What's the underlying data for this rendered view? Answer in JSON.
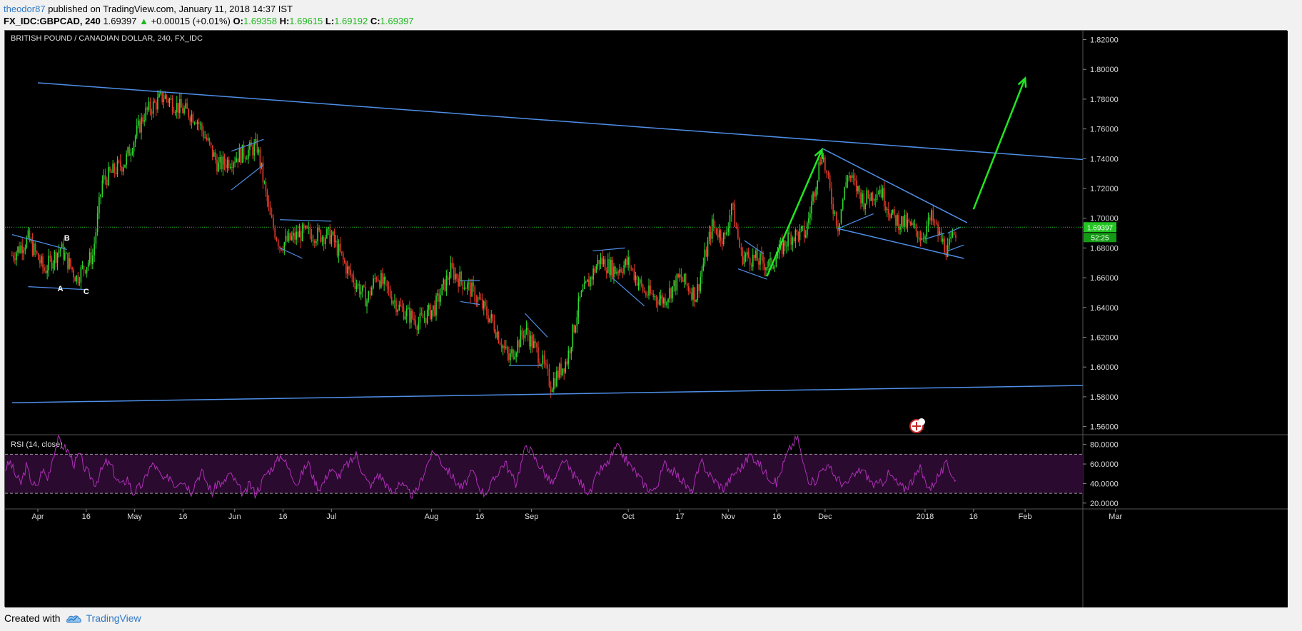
{
  "header": {
    "publisher": "theodor87",
    "published_text": "published on TradingView.com, January 11, 2018 14:37 IST",
    "symbol": "FX_IDC:GBPCAD, 240",
    "last": "1.69397",
    "change_arrow": "▲",
    "change": "+0.00015 (+0.01%)",
    "ohlc": [
      {
        "k": "O:",
        "v": "1.69358"
      },
      {
        "k": "H:",
        "v": "1.69615"
      },
      {
        "k": "L:",
        "v": "1.69192"
      },
      {
        "k": "C:",
        "v": "1.69397"
      }
    ]
  },
  "footer": {
    "created_with": "Created with",
    "brand": "TradingView",
    "logo_icon": "tradingview-cloud-icon"
  },
  "colors": {
    "background": "#000000",
    "bull_candle": "#2fd82f",
    "bear_candle": "#e33a2a",
    "trendline": "#4f8fe8",
    "arrow": "#22e622",
    "rsi_line": "#b02fb8",
    "rsi_band": "#2a0a2f",
    "price_line": "#23c523"
  },
  "chart_data": [
    {
      "type": "candlestick",
      "title": "BRITISH POUND / CANADIAN DOLLAR, 240, FX_IDC",
      "ylim": [
        1.555,
        1.826
      ],
      "y_ticks": [
        "1.82000",
        "1.80000",
        "1.78000",
        "1.76000",
        "1.74000",
        "1.72000",
        "1.70000",
        "1.68000",
        "1.66000",
        "1.64000",
        "1.62000",
        "1.60000",
        "1.58000",
        "1.56000"
      ],
      "x_ticks": [
        "Apr",
        "16",
        "May",
        "16",
        "Jun",
        "16",
        "Jul",
        "Aug",
        "16",
        "Sep",
        "Oct",
        "17",
        "Nov",
        "16",
        "Dec",
        "2018",
        "16",
        "Feb",
        "Mar"
      ],
      "x_tick_dates": [
        "2017-04-01",
        "2017-04-16",
        "2017-05-01",
        "2017-05-16",
        "2017-06-01",
        "2017-06-16",
        "2017-07-01",
        "2017-08-01",
        "2017-08-16",
        "2017-09-01",
        "2017-10-01",
        "2017-10-17",
        "2017-11-01",
        "2017-11-16",
        "2017-12-01",
        "2018-01-01",
        "2018-01-16",
        "2018-02-01",
        "2018-03-01"
      ],
      "last_price_label": "1.69397",
      "countdown_label": "52:25",
      "current_price": 1.69397,
      "price_path": [
        {
          "date": "2017-03-24",
          "close": 1.675
        },
        {
          "date": "2017-03-29",
          "close": 1.686
        },
        {
          "date": "2017-04-03",
          "close": 1.665
        },
        {
          "date": "2017-04-08",
          "close": 1.68
        },
        {
          "date": "2017-04-13",
          "close": 1.66
        },
        {
          "date": "2017-04-18",
          "close": 1.675
        },
        {
          "date": "2017-04-21",
          "close": 1.725
        },
        {
          "date": "2017-04-28",
          "close": 1.738
        },
        {
          "date": "2017-05-04",
          "close": 1.77
        },
        {
          "date": "2017-05-10",
          "close": 1.782
        },
        {
          "date": "2017-05-15",
          "close": 1.774
        },
        {
          "date": "2017-05-20",
          "close": 1.768
        },
        {
          "date": "2017-05-27",
          "close": 1.735
        },
        {
          "date": "2017-06-02",
          "close": 1.742
        },
        {
          "date": "2017-06-08",
          "close": 1.748
        },
        {
          "date": "2017-06-12",
          "close": 1.7
        },
        {
          "date": "2017-06-15",
          "close": 1.682
        },
        {
          "date": "2017-06-22",
          "close": 1.69
        },
        {
          "date": "2017-07-01",
          "close": 1.688
        },
        {
          "date": "2017-07-06",
          "close": 1.665
        },
        {
          "date": "2017-07-12",
          "close": 1.645
        },
        {
          "date": "2017-07-15",
          "close": 1.662
        },
        {
          "date": "2017-07-22",
          "close": 1.64
        },
        {
          "date": "2017-07-28",
          "close": 1.63
        },
        {
          "date": "2017-08-02",
          "close": 1.64
        },
        {
          "date": "2017-08-07",
          "close": 1.665
        },
        {
          "date": "2017-08-14",
          "close": 1.65
        },
        {
          "date": "2017-08-20",
          "close": 1.63
        },
        {
          "date": "2017-08-25",
          "close": 1.605
        },
        {
          "date": "2017-08-30",
          "close": 1.625
        },
        {
          "date": "2017-09-04",
          "close": 1.605
        },
        {
          "date": "2017-09-07",
          "close": 1.588
        },
        {
          "date": "2017-09-12",
          "close": 1.605
        },
        {
          "date": "2017-09-16",
          "close": 1.645
        },
        {
          "date": "2017-09-22",
          "close": 1.672
        },
        {
          "date": "2017-09-27",
          "close": 1.665
        },
        {
          "date": "2017-10-01",
          "close": 1.67
        },
        {
          "date": "2017-10-06",
          "close": 1.65
        },
        {
          "date": "2017-10-12",
          "close": 1.645
        },
        {
          "date": "2017-10-17",
          "close": 1.66
        },
        {
          "date": "2017-10-22",
          "close": 1.648
        },
        {
          "date": "2017-10-27",
          "close": 1.695
        },
        {
          "date": "2017-10-31",
          "close": 1.686
        },
        {
          "date": "2017-11-02",
          "close": 1.71
        },
        {
          "date": "2017-11-05",
          "close": 1.675
        },
        {
          "date": "2017-11-10",
          "close": 1.672
        },
        {
          "date": "2017-11-14",
          "close": 1.668
        },
        {
          "date": "2017-11-20",
          "close": 1.688
        },
        {
          "date": "2017-11-25",
          "close": 1.69
        },
        {
          "date": "2017-11-30",
          "close": 1.745
        },
        {
          "date": "2017-12-03",
          "close": 1.712
        },
        {
          "date": "2017-12-05",
          "close": 1.695
        },
        {
          "date": "2017-12-08",
          "close": 1.73
        },
        {
          "date": "2017-12-13",
          "close": 1.712
        },
        {
          "date": "2017-12-18",
          "close": 1.72
        },
        {
          "date": "2017-12-22",
          "close": 1.7
        },
        {
          "date": "2017-12-27",
          "close": 1.695
        },
        {
          "date": "2017-12-31",
          "close": 1.688
        },
        {
          "date": "2018-01-03",
          "close": 1.7
        },
        {
          "date": "2018-01-06",
          "close": 1.685
        },
        {
          "date": "2018-01-08",
          "close": 1.678
        },
        {
          "date": "2018-01-11",
          "close": 1.694
        }
      ],
      "trendlines": [
        {
          "name": "upper-resistance",
          "from": {
            "date": "2017-04-01",
            "price": 1.791
          },
          "to": {
            "date": "2018-02-28",
            "price": 1.738
          }
        },
        {
          "name": "lower-support",
          "from": {
            "date": "2017-03-24",
            "price": 1.576
          },
          "to": {
            "date": "2018-03-31",
            "price": 1.589
          }
        },
        {
          "name": "wedge-top",
          "from": {
            "date": "2017-11-30",
            "price": 1.747
          },
          "to": {
            "date": "2018-01-14",
            "price": 1.697
          }
        },
        {
          "name": "wedge-bottom",
          "from": {
            "date": "2017-12-05",
            "price": 1.693
          },
          "to": {
            "date": "2018-01-13",
            "price": 1.673
          }
        }
      ],
      "arrows": [
        {
          "name": "rally-arrow",
          "from": {
            "date": "2017-11-13",
            "price": 1.661
          },
          "to": {
            "date": "2017-11-30",
            "price": 1.746
          }
        },
        {
          "name": "projection-arrow",
          "from": {
            "date": "2018-01-16",
            "price": 1.706
          },
          "to": {
            "date": "2018-02-01",
            "price": 1.794
          }
        }
      ],
      "pattern_labels": [
        {
          "text": "A",
          "date": "2017-04-08",
          "price": 1.651
        },
        {
          "text": "B",
          "date": "2017-04-10",
          "price": 1.685
        },
        {
          "text": "C",
          "date": "2017-04-16",
          "price": 1.649
        }
      ]
    },
    {
      "type": "line",
      "title": "RSI (14, close)",
      "ylim": [
        14,
        90
      ],
      "y_ticks": [
        "80.0000",
        "60.0000",
        "40.0000",
        "20.0000"
      ],
      "bands": [
        30,
        70
      ],
      "series": [
        {
          "values": [
            55,
            62,
            48,
            40,
            58,
            42,
            35,
            55,
            45,
            68,
            85,
            78,
            72,
            60,
            70,
            55,
            48,
            40,
            52,
            62,
            58,
            44,
            38,
            46,
            30,
            35,
            40,
            55,
            60,
            50,
            42,
            48,
            38,
            45,
            40,
            32,
            45,
            52,
            40,
            30,
            42,
            38,
            50,
            45,
            35,
            28,
            40,
            30,
            38,
            50,
            55,
            62,
            70,
            58,
            48,
            40,
            52,
            62,
            45,
            35,
            42,
            55,
            50,
            48,
            58,
            62,
            70,
            55,
            42,
            38,
            50,
            45,
            35,
            30,
            42,
            36,
            30,
            28,
            40,
            55,
            68,
            72,
            62,
            55,
            48,
            40,
            35,
            45,
            52,
            38,
            30,
            35,
            45,
            55,
            62,
            50,
            40,
            60,
            80,
            72,
            62,
            55,
            45,
            40,
            50,
            65,
            55,
            48,
            42,
            35,
            30,
            45,
            55,
            58,
            68,
            78,
            70,
            62,
            55,
            48,
            40,
            35,
            32,
            45,
            60,
            55,
            50,
            45,
            38,
            30,
            48,
            62,
            52,
            45,
            40,
            35,
            42,
            50,
            55,
            60,
            70,
            65,
            58,
            50,
            45,
            40,
            55,
            70,
            80,
            88,
            60,
            45,
            40,
            50,
            58,
            55,
            48,
            42,
            38,
            45,
            50,
            55,
            48,
            40,
            38,
            42,
            50,
            45,
            38,
            35,
            40,
            46,
            55,
            42,
            35,
            45,
            52,
            60,
            50,
            40
          ]
        }
      ]
    }
  ]
}
